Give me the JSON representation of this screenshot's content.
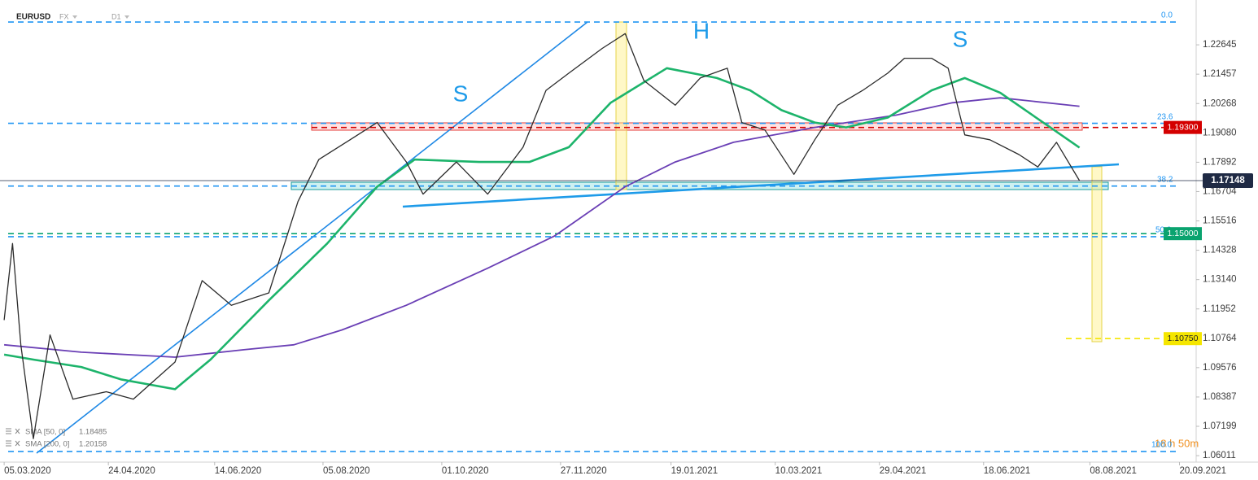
{
  "header": {
    "symbol": "EURUSD",
    "market": "FX",
    "interval": "D1"
  },
  "chart_data": {
    "type": "line",
    "xlim": [
      "03.03.2020",
      "28.09.2021"
    ],
    "xticks": [
      "05.03.2020",
      "24.04.2020",
      "14.06.2020",
      "05.08.2020",
      "01.10.2020",
      "27.11.2020",
      "19.01.2021",
      "10.03.2021",
      "29.04.2021",
      "18.06.2021",
      "08.08.2021",
      "20.09.2021"
    ],
    "ylim": [
      1.0575,
      1.2446
    ],
    "yticks": [
      1.06011,
      1.07199,
      1.08387,
      1.09576,
      1.10764,
      1.11952,
      {
        "value": 1.1314,
        "label": "1.13140"
      },
      1.14328,
      1.15516,
      1.16704,
      1.17892,
      {
        "value": 1.1908,
        "label": "1.19080"
      },
      1.20268,
      1.21457,
      1.22645
    ],
    "series": [
      {
        "name": "EURUSD",
        "color": "#2b2b2b",
        "x": [
          "05.03.2020",
          "09.03.2020",
          "13.03.2020",
          "19.03.2020",
          "27.03.2020",
          "07.04.2020",
          "23.04.2020",
          "06.05.2020",
          "26.05.2020",
          "08.06.2020",
          "22.06.2020",
          "10.07.2020",
          "24.07.2020",
          "03.08.2020",
          "18.08.2020",
          "31.08.2020",
          "14.09.2020",
          "22.09.2020",
          "08.10.2020",
          "23.10.2020",
          "09.11.2020",
          "20.11.2020",
          "01.12.2020",
          "17.12.2020",
          "28.12.2020",
          "06.01.2021",
          "21.01.2021",
          "02.02.2021",
          "15.02.2021",
          "22.02.2021",
          "05.03.2021",
          "19.03.2021",
          "29.03.2021",
          "09.04.2021",
          "21.04.2021",
          "03.05.2021",
          "11.05.2021",
          "24.05.2021",
          "01.06.2021",
          "09.06.2021",
          "21.06.2021",
          "05.07.2021",
          "14.07.2021",
          "23.07.2021",
          "03.08.2021"
        ],
        "values": [
          1.115,
          1.146,
          1.105,
          1.067,
          1.109,
          1.083,
          1.086,
          1.083,
          1.098,
          1.131,
          1.121,
          1.126,
          1.163,
          1.18,
          1.188,
          1.195,
          1.179,
          1.166,
          1.179,
          1.166,
          1.185,
          1.208,
          1.215,
          1.225,
          1.231,
          1.212,
          1.202,
          1.213,
          1.217,
          1.195,
          1.192,
          1.174,
          1.188,
          1.202,
          1.208,
          1.215,
          1.221,
          1.221,
          1.217,
          1.19,
          1.188,
          1.182,
          1.177,
          1.187,
          1.17148
        ]
      },
      {
        "name": "SMA [50, 0]",
        "color": "#1db46b",
        "x": [
          "05.03.2020",
          "19.03.2020",
          "11.04.2020",
          "30.04.2020",
          "26.05.2020",
          "12.06.2020",
          "10.07.2020",
          "07.08.2020",
          "31.08.2020",
          "18.09.2020",
          "19.10.2020",
          "12.11.2020",
          "01.12.2020",
          "21.12.2020",
          "17.01.2021",
          "10.02.2021",
          "26.02.2021",
          "13.03.2021",
          "29.03.2021",
          "13.04.2021",
          "03.05.2021",
          "24.05.2021",
          "09.06.2021",
          "26.06.2021",
          "20.07.2021",
          "03.08.2021"
        ],
        "values": [
          1.101,
          1.099,
          1.096,
          1.091,
          1.087,
          1.099,
          1.123,
          1.146,
          1.169,
          1.18,
          1.179,
          1.179,
          1.185,
          1.203,
          1.217,
          1.213,
          1.208,
          1.2,
          1.195,
          1.193,
          1.197,
          1.208,
          1.213,
          1.207,
          1.193,
          1.18485
        ]
      },
      {
        "name": "SMA [200, 0]",
        "color": "#6a3fb5",
        "x": [
          "05.03.2020",
          "11.04.2020",
          "26.05.2020",
          "28.06.2020",
          "22.07.2020",
          "14.08.2020",
          "14.09.2020",
          "23.10.2020",
          "24.11.2020",
          "28.12.2020",
          "21.01.2021",
          "18.02.2021",
          "29.03.2021",
          "07.05.2021",
          "03.06.2021",
          "26.06.2021",
          "03.08.2021"
        ],
        "values": [
          1.105,
          1.102,
          1.1,
          1.103,
          1.105,
          1.111,
          1.121,
          1.136,
          1.149,
          1.169,
          1.179,
          1.187,
          1.193,
          1.198,
          1.203,
          1.205,
          1.20158
        ]
      }
    ],
    "levels": [
      {
        "value": 1.193,
        "label": "1.19300",
        "color": "#d40000"
      },
      {
        "value": 1.15,
        "label": "1.15000",
        "color": "#0aa36f"
      },
      {
        "value": 1.1075,
        "label": "1.10750",
        "color": "#f5e600"
      }
    ],
    "fibonacci": {
      "high": 1.2357,
      "low": 1.0618,
      "color": "#2196f3",
      "levels": [
        {
          "value": 0,
          "label": "0.0"
        },
        23.6,
        38.2,
        {
          "value": 50,
          "label": "50.0"
        },
        {
          "value": 100,
          "label": "100.0"
        }
      ]
    },
    "annotations": [
      "S",
      "H",
      "S"
    ],
    "countdown": "18 h 50m"
  }
}
